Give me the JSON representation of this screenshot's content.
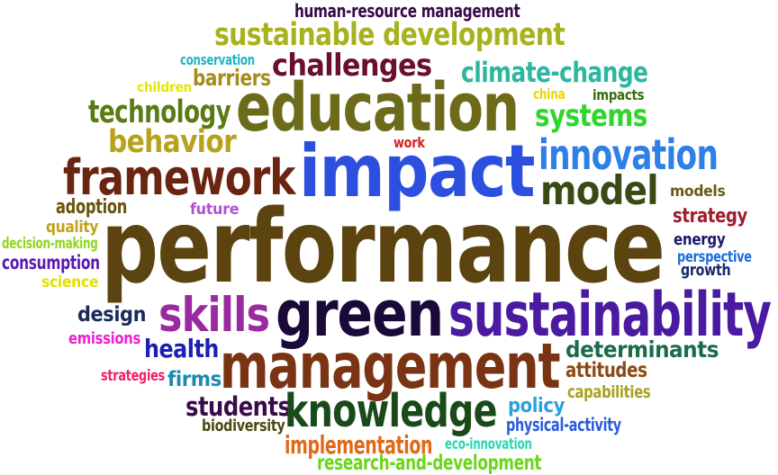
{
  "words": [
    {
      "text": "human-resource management",
      "color": "#3a0a4a"
    },
    {
      "text": "sustainable development",
      "color": "#a8b21e"
    },
    {
      "text": "conservation",
      "color": "#1fb5c0"
    },
    {
      "text": "challenges",
      "color": "#6a0f2c"
    },
    {
      "text": "climate-change",
      "color": "#2db6a0"
    },
    {
      "text": "children",
      "color": "#e6e600"
    },
    {
      "text": "barriers",
      "color": "#a58d1c"
    },
    {
      "text": "education",
      "color": "#6b6b1a"
    },
    {
      "text": "china",
      "color": "#e6d800"
    },
    {
      "text": "impacts",
      "color": "#3a6b0a"
    },
    {
      "text": "technology",
      "color": "#5a7a14"
    },
    {
      "text": "systems",
      "color": "#2ed62e"
    },
    {
      "text": "behavior",
      "color": "#b8a21c"
    },
    {
      "text": "work",
      "color": "#d62020"
    },
    {
      "text": "impact",
      "color": "#2c4fe0"
    },
    {
      "text": "innovation",
      "color": "#2f7fe8"
    },
    {
      "text": "framework",
      "color": "#6a2410"
    },
    {
      "text": "model",
      "color": "#3a4a14"
    },
    {
      "text": "models",
      "color": "#6b5a14"
    },
    {
      "text": "adoption",
      "color": "#6b5410"
    },
    {
      "text": "future",
      "color": "#b050d6"
    },
    {
      "text": "strategy",
      "color": "#a01c2c"
    },
    {
      "text": "quality",
      "color": "#c0a21c"
    },
    {
      "text": "decision-making",
      "color": "#90d61c"
    },
    {
      "text": "performance",
      "color": "#5c4410"
    },
    {
      "text": "energy",
      "color": "#1a1a6b"
    },
    {
      "text": "consumption",
      "color": "#5a1ab0"
    },
    {
      "text": "perspective",
      "color": "#1a6be0"
    },
    {
      "text": "growth",
      "color": "#1a2a6b"
    },
    {
      "text": "science",
      "color": "#e0e000"
    },
    {
      "text": "design",
      "color": "#1a2a5c"
    },
    {
      "text": "skills",
      "color": "#9a2aa0"
    },
    {
      "text": "green",
      "color": "#1a0a3a"
    },
    {
      "text": "sustainability",
      "color": "#4a1aa0"
    },
    {
      "text": "emissions",
      "color": "#f020d0"
    },
    {
      "text": "health",
      "color": "#1a20b0"
    },
    {
      "text": "management",
      "color": "#7a3414"
    },
    {
      "text": "determinants",
      "color": "#1a6b4a"
    },
    {
      "text": "strategies",
      "color": "#f0206b"
    },
    {
      "text": "firms",
      "color": "#1a8ab0"
    },
    {
      "text": "attitudes",
      "color": "#8a4a14"
    },
    {
      "text": "capabilities",
      "color": "#a8a21c"
    },
    {
      "text": "students",
      "color": "#3a0a4a"
    },
    {
      "text": "knowledge",
      "color": "#1a4a1a"
    },
    {
      "text": "policy",
      "color": "#2aa0e0"
    },
    {
      "text": "biodiversity",
      "color": "#4a4a14"
    },
    {
      "text": "physical-activity",
      "color": "#2a5ae0"
    },
    {
      "text": "implementation",
      "color": "#e06a1a"
    },
    {
      "text": "eco-innovation",
      "color": "#2ad6b0"
    },
    {
      "text": "research-and-development",
      "color": "#6bd61a"
    }
  ]
}
